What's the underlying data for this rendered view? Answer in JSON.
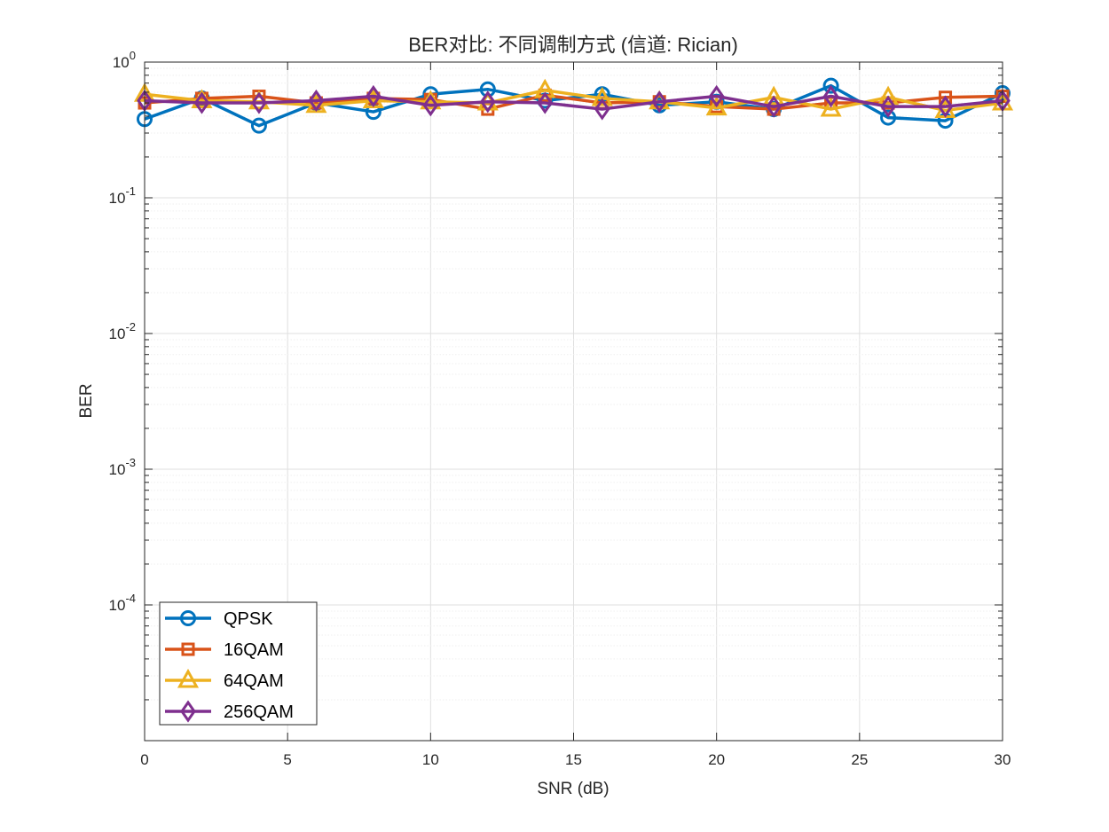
{
  "chart_data": {
    "type": "line",
    "title": "BER对比: 不同调制方式 (信道: Rician)",
    "xlabel": "SNR (dB)",
    "ylabel": "BER",
    "xlim": [
      0,
      30
    ],
    "ylim": [
      1e-05,
      1
    ],
    "yscale": "log",
    "grid": true,
    "legend_position": "bottom-left",
    "x_ticks": [
      "0",
      "5",
      "10",
      "15",
      "20",
      "25",
      "30"
    ],
    "y_ticks": [
      {
        "base": "10",
        "exp": "0",
        "value": 1
      },
      {
        "base": "10",
        "exp": "-1",
        "value": 0.1
      },
      {
        "base": "10",
        "exp": "-2",
        "value": 0.01
      },
      {
        "base": "10",
        "exp": "-3",
        "value": 0.001
      },
      {
        "base": "10",
        "exp": "-4",
        "value": 0.0001
      }
    ],
    "x": [
      0,
      2,
      4,
      6,
      8,
      10,
      12,
      14,
      16,
      18,
      20,
      22,
      24,
      26,
      28,
      30
    ],
    "series": [
      {
        "name": "QPSK",
        "color": "#0072BD",
        "marker": "circle",
        "values": [
          0.38,
          0.54,
          0.34,
          0.5,
          0.43,
          0.58,
          0.63,
          0.52,
          0.58,
          0.48,
          0.51,
          0.45,
          0.67,
          0.39,
          0.37,
          0.59
        ]
      },
      {
        "name": "16QAM",
        "color": "#D95319",
        "marker": "square",
        "values": [
          0.5,
          0.54,
          0.56,
          0.5,
          0.54,
          0.53,
          0.45,
          0.57,
          0.5,
          0.51,
          0.47,
          0.45,
          0.5,
          0.5,
          0.55,
          0.56
        ]
      },
      {
        "name": "64QAM",
        "color": "#EDB120",
        "marker": "triangle",
        "values": [
          0.58,
          0.52,
          0.51,
          0.48,
          0.52,
          0.51,
          0.5,
          0.62,
          0.54,
          0.51,
          0.46,
          0.55,
          0.45,
          0.55,
          0.44,
          0.5
        ]
      },
      {
        "name": "256QAM",
        "color": "#7E2F8E",
        "marker": "diamond",
        "values": [
          0.52,
          0.5,
          0.5,
          0.52,
          0.56,
          0.48,
          0.51,
          0.5,
          0.45,
          0.51,
          0.56,
          0.47,
          0.56,
          0.47,
          0.47,
          0.52
        ]
      }
    ]
  }
}
